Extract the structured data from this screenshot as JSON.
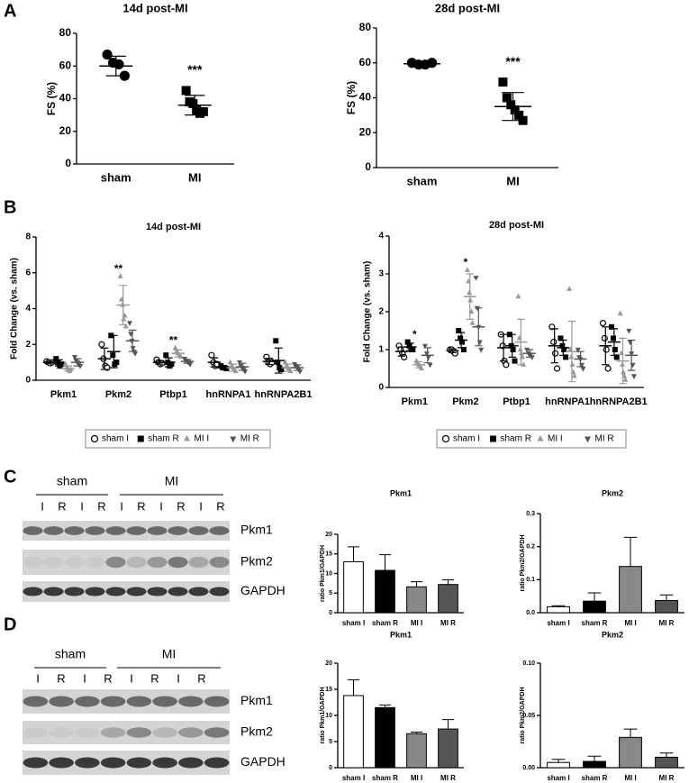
{
  "panel_labels": [
    "A",
    "B",
    "C",
    "D"
  ],
  "blots": [
    {
      "groups": [
        "sham",
        "MI"
      ],
      "lanes": [
        "I",
        "R",
        "I",
        "R",
        "I",
        "R",
        "I",
        "R",
        "I",
        "R"
      ],
      "bands": [
        "Pkm1",
        "Pkm2",
        "GAPDH"
      ]
    },
    {
      "groups": [
        "sham",
        "MI"
      ],
      "lanes": [
        "I",
        "R",
        "I",
        "R",
        "I",
        "R",
        "I",
        "R"
      ],
      "bands": [
        "Pkm1",
        "Pkm2",
        "GAPDH"
      ]
    }
  ],
  "chart_data": [
    {
      "type": "dot",
      "title": "14d post-MI",
      "ylabel": "FS (%)",
      "categories": [
        "sham",
        "MI"
      ],
      "markers": [
        "circle",
        "square"
      ],
      "color": "#000000",
      "points": [
        [
          67,
          62,
          61,
          54
        ],
        [
          45,
          38,
          37,
          33,
          31,
          32
        ]
      ],
      "values": [
        60,
        36
      ],
      "errors": [
        6,
        6
      ],
      "ylim": [
        0,
        80
      ],
      "yticks": [
        0,
        20,
        40,
        60,
        80
      ],
      "annotations": [
        {
          "text": "***",
          "x": "MI"
        }
      ]
    },
    {
      "type": "dot",
      "title": "28d post-MI",
      "ylabel": "FS (%)",
      "categories": [
        "sham",
        "MI"
      ],
      "markers": [
        "circle",
        "square"
      ],
      "color": "#000000",
      "points": [
        [
          60,
          59,
          59,
          60
        ],
        [
          49,
          40,
          36,
          33,
          30,
          27
        ]
      ],
      "values": [
        59.5,
        35
      ],
      "errors": [
        1,
        8
      ],
      "ylim": [
        0,
        80
      ],
      "yticks": [
        0,
        20,
        40,
        60,
        80
      ],
      "annotations": [
        {
          "text": "***",
          "x": "MI"
        }
      ]
    },
    {
      "type": "dot",
      "title": "14d post-MI",
      "ylabel": "Fold Change (vs. sham)",
      "categories": [
        "Pkm1",
        "Pkm2",
        "Ptbp1",
        "hnRNPA1",
        "hnRNPA2B1"
      ],
      "ylim": [
        0,
        8
      ],
      "yticks": [
        0,
        2,
        4,
        6,
        8
      ],
      "annotations": [
        {
          "text": "**",
          "x": "Pkm2"
        },
        {
          "text": "**",
          "x": "Ptbp1"
        }
      ],
      "series": [
        {
          "name": "sham I",
          "color": "#000000",
          "marker": "open-circle",
          "values": [
            1.0,
            1.2,
            1.0,
            1.0,
            1.05
          ],
          "errors": [
            0.05,
            0.6,
            0.1,
            0.25,
            0.17
          ],
          "points": [
            [
              1.05,
              1.0,
              0.95,
              1.0
            ],
            [
              2.0,
              1.2,
              0.8,
              0.7
            ],
            [
              1.15,
              1.0,
              0.9,
              0.95
            ],
            [
              1.4,
              1.0,
              0.8,
              0.9
            ],
            [
              1.3,
              1.0,
              0.9,
              1.0
            ]
          ]
        },
        {
          "name": "sham R",
          "color": "#000000",
          "marker": "square",
          "values": [
            0.97,
            1.6,
            1.0,
            0.7,
            1.1
          ],
          "errors": [
            0.17,
            0.9,
            0.25,
            0.06,
            0.7
          ],
          "points": [
            [
              1.2,
              1.0,
              0.8,
              0.9
            ],
            [
              2.5,
              1.4,
              0.9,
              1.0
            ],
            [
              1.4,
              1.0,
              0.8,
              0.9
            ],
            [
              0.8,
              0.7,
              0.7,
              0.65
            ],
            [
              2.2,
              1.0,
              0.7,
              0.6
            ]
          ]
        },
        {
          "name": "MI I",
          "color": "#999999",
          "marker": "triangle",
          "values": [
            0.65,
            4.2,
            1.5,
            0.7,
            0.7
          ],
          "errors": [
            0.15,
            1.1,
            0.2,
            0.2,
            0.2
          ],
          "points": [
            [
              0.9,
              0.7,
              0.6,
              0.5,
              0.6
            ],
            [
              5.8,
              4.5,
              4.2,
              3.4,
              3.6,
              3.0
            ],
            [
              1.8,
              1.6,
              1.5,
              1.4,
              1.3
            ],
            [
              1.0,
              0.8,
              0.7,
              0.6,
              0.5
            ],
            [
              1.0,
              0.8,
              0.7,
              0.6,
              0.5
            ]
          ]
        },
        {
          "name": "MI R",
          "color": "#555555",
          "marker": "triangle-down",
          "values": [
            1.0,
            2.2,
            1.05,
            0.75,
            0.7
          ],
          "errors": [
            0.2,
            0.6,
            0.1,
            0.2,
            0.15
          ],
          "points": [
            [
              1.3,
              1.1,
              1.0,
              0.9,
              0.8
            ],
            [
              3.2,
              2.6,
              2.2,
              1.8,
              1.6,
              1.5
            ],
            [
              1.2,
              1.1,
              1.0,
              0.9
            ],
            [
              1.0,
              0.8,
              0.7,
              0.6,
              0.5
            ],
            [
              0.9,
              0.8,
              0.7,
              0.6,
              0.5
            ]
          ]
        }
      ]
    },
    {
      "type": "dot",
      "title": "28d post-MI",
      "ylabel": "Fold Change (vs. sham)",
      "categories": [
        "Pkm1",
        "Pkm2",
        "Ptbp1",
        "hnRNPA1",
        "hnRNPA2B1"
      ],
      "ylim": [
        0,
        4
      ],
      "yticks": [
        0,
        1,
        2,
        3,
        4
      ],
      "annotations": [
        {
          "text": "*",
          "x": "Pkm1"
        },
        {
          "text": "*",
          "x": "Pkm2"
        }
      ],
      "series": [
        {
          "name": "sham I",
          "color": "#000000",
          "marker": "open-circle",
          "values": [
            0.95,
            0.97,
            1.05,
            1.1,
            1.1
          ],
          "errors": [
            0.12,
            0.05,
            0.35,
            0.45,
            0.5
          ],
          "points": [
            [
              1.1,
              1.0,
              0.9,
              0.8
            ],
            [
              1.0,
              1.0,
              0.95,
              0.9
            ],
            [
              1.4,
              1.1,
              0.7,
              0.6
            ],
            [
              1.6,
              1.2,
              0.9,
              0.5
            ],
            [
              1.7,
              1.3,
              1.0,
              0.5
            ]
          ]
        },
        {
          "name": "sham R",
          "color": "#000000",
          "marker": "square",
          "values": [
            1.07,
            1.25,
            1.1,
            1.05,
            1.2
          ],
          "errors": [
            0.1,
            0.2,
            0.3,
            0.2,
            0.35
          ],
          "points": [
            [
              1.2,
              1.1,
              1.0,
              1.0
            ],
            [
              1.5,
              1.3,
              1.2,
              1.0
            ],
            [
              1.4,
              1.1,
              1.0,
              0.7
            ],
            [
              1.3,
              1.1,
              1.0,
              0.8
            ],
            [
              1.6,
              1.3,
              1.0,
              0.8
            ]
          ]
        },
        {
          "name": "MI I",
          "color": "#999999",
          "marker": "triangle",
          "values": [
            0.6,
            2.4,
            1.2,
            0.95,
            0.7
          ],
          "errors": [
            0.08,
            0.6,
            0.6,
            0.8,
            0.6
          ],
          "points": [
            [
              0.7,
              0.65,
              0.6,
              0.55,
              0.5
            ],
            [
              3.1,
              2.8,
              2.5,
              2.3,
              2.0,
              1.7
            ],
            [
              2.4,
              1.3,
              1.0,
              0.9,
              0.8,
              0.6
            ],
            [
              2.6,
              1.0,
              0.8,
              0.6,
              0.4,
              0.3
            ],
            [
              1.95,
              0.9,
              0.6,
              0.4,
              0.3,
              0.2
            ]
          ]
        },
        {
          "name": "MI R",
          "color": "#555555",
          "marker": "triangle-down",
          "values": [
            0.85,
            1.6,
            0.9,
            0.75,
            0.85
          ],
          "errors": [
            0.2,
            0.5,
            0.1,
            0.2,
            0.4
          ],
          "points": [
            [
              1.1,
              0.9,
              0.8,
              0.6
            ],
            [
              2.9,
              2.1,
              1.6,
              1.2,
              1.0
            ],
            [
              1.0,
              0.9,
              0.85,
              0.8
            ],
            [
              1.0,
              0.8,
              0.75,
              0.6,
              0.5
            ],
            [
              1.5,
              1.2,
              0.9,
              0.6,
              0.3
            ]
          ]
        }
      ]
    },
    {
      "type": "bar",
      "title": "Pkm1",
      "ylabel": "ratio Pkm1/GAPDH",
      "categories": [
        "sham I",
        "sham R",
        "MI I",
        "MI R"
      ],
      "colors": [
        "#ffffff",
        "#000000",
        "#888888",
        "#555555"
      ],
      "values": [
        13,
        10.8,
        6.6,
        7.2
      ],
      "errors": [
        3.8,
        4,
        1.3,
        1.2
      ],
      "ylim": [
        0,
        20
      ],
      "yticks": [
        0,
        5,
        10,
        15,
        20
      ]
    },
    {
      "type": "bar",
      "title": "Pkm2",
      "ylabel": "ratio Pkm2/GAPDH",
      "categories": [
        "sham I",
        "sham R",
        "MI I",
        "MI R"
      ],
      "colors": [
        "#ffffff",
        "#000000",
        "#888888",
        "#555555"
      ],
      "values": [
        0.018,
        0.035,
        0.14,
        0.037
      ],
      "errors": [
        0.003,
        0.025,
        0.088,
        0.017
      ],
      "ylim": [
        0,
        0.3
      ],
      "yticks": [
        {
          "value": 0,
          "label": "0.0"
        },
        {
          "value": 0.1,
          "label": "0.1"
        },
        {
          "value": 0.2,
          "label": "0.2"
        },
        {
          "value": 0.3,
          "label": "0.3"
        }
      ]
    },
    {
      "type": "bar",
      "title": "Pkm1",
      "ylabel": "ratio Pkm1/GAPDH",
      "categories": [
        "sham I",
        "sham R",
        "MI I",
        "MI R"
      ],
      "colors": [
        "#ffffff",
        "#000000",
        "#888888",
        "#555555"
      ],
      "values": [
        13.8,
        11.5,
        6.5,
        7.4
      ],
      "errors": [
        3,
        0.5,
        0.3,
        1.8
      ],
      "ylim": [
        0,
        20
      ],
      "yticks": [
        0,
        5,
        10,
        15,
        20
      ]
    },
    {
      "type": "bar",
      "title": "Pkm2",
      "ylabel": "ratio Pkm2/GAPDH",
      "categories": [
        "sham I",
        "sham R",
        "MI I",
        "MI R"
      ],
      "colors": [
        "#ffffff",
        "#000000",
        "#888888",
        "#555555"
      ],
      "values": [
        0.005,
        0.006,
        0.029,
        0.01
      ],
      "errors": [
        0.003,
        0.005,
        0.008,
        0.004
      ],
      "ylim": [
        0,
        0.1
      ],
      "yticks": [
        {
          "value": 0,
          "label": "0.00"
        },
        {
          "value": 0.05,
          "label": "0.05"
        },
        {
          "value": 0.1,
          "label": "0.10"
        }
      ]
    }
  ]
}
